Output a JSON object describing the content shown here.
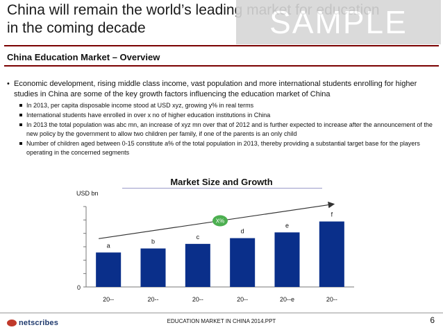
{
  "slide": {
    "title_line1": "China will remain the world’s leading market for education",
    "title_line2": "in the coming decade",
    "watermark": "SAMPLE",
    "section_title": "China Education Market – Overview",
    "main_bullet": "Economic development, rising middle class income, vast population and more international students enrolling for higher studies in China are some of the key growth factors influencing the education market of China",
    "sub_bullets": [
      "In 2013, per capita disposable income stood at USD xyz, growing y% in real terms",
      "International students have enrolled in over x no of higher education institutions in China",
      "In 2013 the total population was abc mn, an increase of xyz mn over that of 2012 and is further expected to increase after the announcement of the new policy by the government to allow two children per family, if one of the parents is an only child",
      "Number of children aged between 0-15 constitute a% of the total population in 2013, thereby providing a substantial target base for the players operating in the concerned segments"
    ]
  },
  "chart_data": {
    "type": "bar",
    "title": "Market Size and Growth",
    "ylabel": "USD bn",
    "y_tick_label": "0",
    "categories": [
      "20--",
      "20--",
      "20--",
      "20--",
      "20--e",
      "20--"
    ],
    "values": [
      3.0,
      3.35,
      3.75,
      4.25,
      4.75,
      5.7
    ],
    "data_labels": [
      "a",
      "b",
      "c",
      "d",
      "e",
      "f"
    ],
    "ylim": [
      0,
      7
    ],
    "growth_label": "X%",
    "bar_color": "#0a2f8a",
    "growth_badge_color": "#4caf50",
    "grid": false
  },
  "footer": {
    "doc_name": "EDUCATION MARKET IN CHINA 2014.PPT",
    "page_number": "6",
    "logo_text": "netscribes"
  },
  "colors": {
    "accent_rule": "#7a0000"
  }
}
